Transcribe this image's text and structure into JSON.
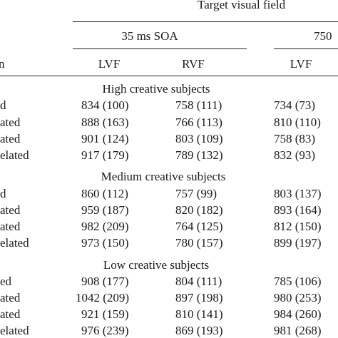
{
  "table": {
    "header": {
      "top": "Target visual field",
      "soa_35": "35 ms SOA",
      "soa_750": "750",
      "stub": "n",
      "lvf_1": "LVF",
      "rvf_1": "RVF",
      "lvf_2": "LVF"
    },
    "groups": [
      {
        "title": "High creative subjects",
        "rows": [
          {
            "label": "d",
            "c1": "834 (100)",
            "c2": "758 (111)",
            "c3": "734 (73)"
          },
          {
            "label": "ated",
            "c1": "888 (163)",
            "c2": "766 (113)",
            "c3": "810 (110)"
          },
          {
            "label": "ated",
            "c1": "901 (124)",
            "c2": "803 (109)",
            "c3": "758 (83)"
          },
          {
            "label": "elated",
            "c1": "917 (179)",
            "c2": "789 (132)",
            "c3": "832 (93)"
          }
        ]
      },
      {
        "title": "Medium creative subjects",
        "rows": [
          {
            "label": "d",
            "c1": "860 (112)",
            "c2": "757 (99)",
            "c3": "803 (137)"
          },
          {
            "label": "ated",
            "c1": "959 (187)",
            "c2": "820 (182)",
            "c3": "893 (164)"
          },
          {
            "label": "ated",
            "c1": "982 (209)",
            "c2": "764 (125)",
            "c3": "812 (150)"
          },
          {
            "label": "elated",
            "c1": "973 (150)",
            "c2": "780 (157)",
            "c3": "899 (197)"
          }
        ]
      },
      {
        "title": "Low creative subjects",
        "rows": [
          {
            "label": "ed",
            "c1": "908 (177)",
            "c2": "804 (111)",
            "c3": "785 (106)"
          },
          {
            "label": "ated",
            "c1": "1042 (209)",
            "c2": "897 (198)",
            "c3": "980 (253)"
          },
          {
            "label": "ated",
            "c1": "921 (159)",
            "c2": "810 (141)",
            "c3": "984 (260)"
          },
          {
            "label": "elated",
            "c1": "976 (239)",
            "c2": "869 (193)",
            "c3": "981 (268)"
          }
        ]
      }
    ]
  }
}
